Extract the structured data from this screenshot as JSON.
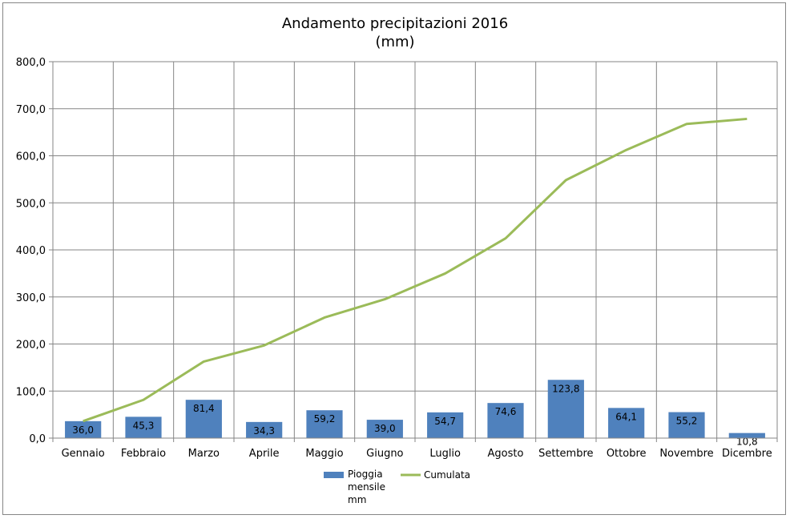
{
  "chart_data": {
    "type": "bar",
    "title": "Andamento precipitazioni 2016",
    "subtitle": "(mm)",
    "categories": [
      "Gennaio",
      "Febbraio",
      "Marzo",
      "Aprile",
      "Maggio",
      "Giugno",
      "Luglio",
      "Agosto",
      "Settembre",
      "Ottobre",
      "Novembre",
      "Dicembre"
    ],
    "series": [
      {
        "name": "Pioggia mensile mm",
        "name_lines": [
          "Pioggia",
          "mensile",
          "mm"
        ],
        "type": "bar",
        "color": "#4F81BD",
        "values": [
          36.0,
          45.3,
          81.4,
          34.3,
          59.2,
          39.0,
          54.7,
          74.6,
          123.8,
          64.1,
          55.2,
          10.8
        ],
        "data_labels": [
          "36,0",
          "45,3",
          "81,4",
          "34,3",
          "59,2",
          "39,0",
          "54,7",
          "74,6",
          "123,8",
          "64,1",
          "55,2",
          "10,8"
        ]
      },
      {
        "name": "Cumulata",
        "type": "line",
        "color": "#9BBB59",
        "values": [
          36.0,
          81.3,
          162.7,
          197.0,
          256.2,
          295.2,
          349.9,
          424.5,
          548.3,
          612.4,
          667.6,
          678.4
        ]
      }
    ],
    "ylim": [
      0,
      800
    ],
    "yticks": [
      0,
      100,
      200,
      300,
      400,
      500,
      600,
      700,
      800
    ],
    "ytick_labels": [
      "0,0",
      "100,0",
      "200,0",
      "300,0",
      "400,0",
      "500,0",
      "600,0",
      "700,0",
      "800,0"
    ],
    "xlabel": "",
    "ylabel": "",
    "grid": true,
    "legend_position": "bottom"
  }
}
